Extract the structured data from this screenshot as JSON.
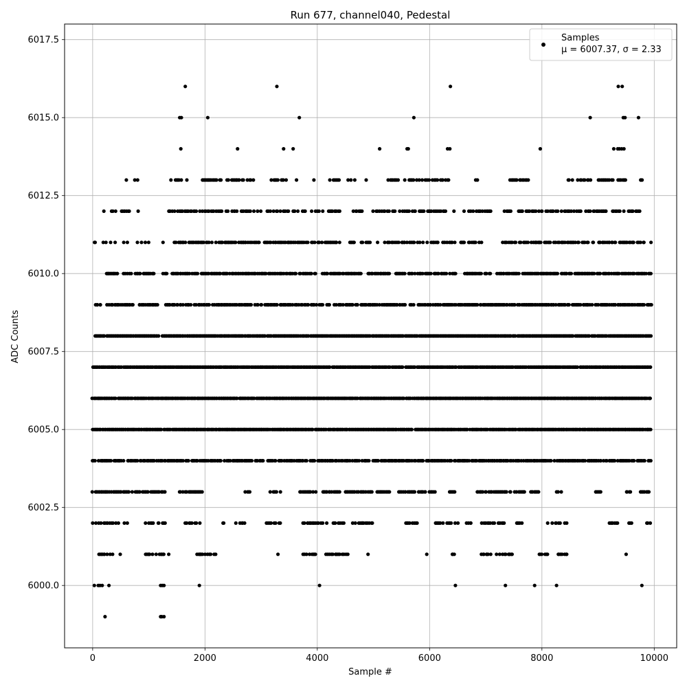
{
  "chart_data": {
    "type": "scatter",
    "title": "Run 677, channel040, Pedestal",
    "xlabel": "Sample #",
    "ylabel": "ADC Counts",
    "xlim": [
      -500,
      10400
    ],
    "ylim": [
      5998.0,
      6018.0
    ],
    "x_ticks": [
      0,
      2000,
      4000,
      6000,
      8000,
      10000
    ],
    "y_ticks": [
      6000.0,
      6002.5,
      6005.0,
      6007.5,
      6010.0,
      6012.5,
      6015.0,
      6017.5
    ],
    "x_tick_labels": [
      "0",
      "2000",
      "4000",
      "6000",
      "8000",
      "10000"
    ],
    "y_tick_labels": [
      "6000.0",
      "6002.5",
      "6005.0",
      "6007.5",
      "6010.0",
      "6012.5",
      "6015.0",
      "6017.5"
    ],
    "grid": true,
    "legend_position": "top-right",
    "marker_color": "#000000",
    "n_samples": 10000,
    "series": [
      {
        "name": "Samples",
        "stats_label": "μ = 6007.37, σ = 2.33",
        "mean": 6007.37,
        "std": 2.33,
        "level_ranges": [
          {
            "y": 6016,
            "x": [
              1650,
              3280,
              6370,
              9360,
              9430
            ]
          },
          {
            "y": 6015,
            "x": [
              1550,
              1580,
              2050,
              3680,
              5720,
              8860,
              9450,
              9480,
              9720
            ]
          },
          {
            "y": 6014,
            "x": [
              1570,
              2580,
              3400,
              3570,
              5110,
              5600,
              5620,
              6320,
              6360,
              7970,
              9280,
              9350,
              9380,
              9420,
              9460
            ]
          },
          {
            "y": 6013,
            "x": [
              [
                1370,
                1700
              ],
              [
                1950,
                2300
              ],
              [
                2400,
                2900
              ],
              [
                3150,
                3450
              ],
              [
                3630,
                3640
              ],
              [
                3940,
                3950
              ],
              [
                4200,
                4400
              ],
              [
                4550,
                4700
              ],
              [
                4870,
                4880
              ],
              [
                5250,
                5450
              ],
              [
                5550,
                6000
              ],
              [
                6050,
                6150
              ],
              [
                6200,
                6350
              ],
              [
                6820,
                6860
              ],
              [
                7350,
                7800
              ],
              [
                8450,
                8900
              ],
              [
                9000,
                9300
              ],
              [
                9350,
                9500
              ],
              [
                9720,
                9800
              ]
            ],
            "sparse": [
              600,
              750,
              800
            ]
          },
          {
            "y": 6012,
            "x": [
              [
                320,
                420
              ],
              [
                500,
                650
              ],
              [
                800,
                850
              ],
              [
                1350,
                2500
              ],
              [
                2500,
                3500
              ],
              [
                3550,
                3900
              ],
              [
                3950,
                4100
              ],
              [
                4200,
                4400
              ],
              [
                4600,
                4800
              ],
              [
                5000,
                5300
              ],
              [
                5350,
                6450
              ],
              [
                6600,
                7100
              ],
              [
                7300,
                7500
              ],
              [
                7550,
                7900
              ],
              [
                7950,
                8300
              ],
              [
                8350,
                8700
              ],
              [
                8750,
                9500
              ],
              [
                9550,
                9800
              ]
            ],
            "sparse": [
              200
            ]
          },
          {
            "y": 6011,
            "x": [
              [
                30,
                60
              ],
              [
                180,
                250
              ],
              [
                320,
                400
              ],
              [
                550,
                700
              ],
              [
                800,
                1000
              ],
              [
                1250,
                1300
              ],
              [
                1450,
                4700
              ],
              [
                4750,
                4950
              ],
              [
                5050,
                5100
              ],
              [
                5200,
                6450
              ],
              [
                6550,
                6950
              ],
              [
                7300,
                9950
              ]
            ]
          },
          {
            "y": 6010,
            "x": [
              [
                230,
                450
              ],
              [
                550,
                700
              ],
              [
                750,
                850
              ],
              [
                900,
                1100
              ],
              [
                1250,
                4000
              ],
              [
                4100,
                4800
              ],
              [
                4900,
                5300
              ],
              [
                5400,
                6500
              ],
              [
                6600,
                7100
              ],
              [
                7200,
                9950
              ]
            ]
          },
          {
            "y": 6009,
            "x": [
              [
                20,
                150
              ],
              [
                250,
                1150
              ],
              [
                1250,
                9950
              ]
            ]
          },
          {
            "y": 6008,
            "x": [
              [
                50,
                1200
              ],
              [
                1250,
                9950
              ]
            ]
          },
          {
            "y": 6007,
            "x": [
              [
                0,
                9950
              ]
            ]
          },
          {
            "y": 6006,
            "x": [
              [
                0,
                9950
              ]
            ]
          },
          {
            "y": 6005,
            "x": [
              [
                0,
                9950
              ]
            ]
          },
          {
            "y": 6004,
            "x": [
              [
                0,
                1100
              ],
              [
                1150,
                9950
              ]
            ]
          },
          {
            "y": 6003,
            "x": [
              [
                0,
                650
              ],
              [
                700,
                1300
              ],
              [
                1550,
                1950
              ],
              [
                2700,
                2800
              ],
              [
                3150,
                3350
              ],
              [
                3700,
                4000
              ],
              [
                4100,
                4400
              ],
              [
                4500,
                5000
              ],
              [
                5050,
                5300
              ],
              [
                5450,
                5750
              ],
              [
                5800,
                6100
              ],
              [
                6350,
                6450
              ],
              [
                6850,
                7700
              ],
              [
                7800,
                8000
              ],
              [
                8250,
                8350
              ],
              [
                8950,
                9050
              ],
              [
                9500,
                9600
              ],
              [
                9750,
                9950
              ]
            ]
          },
          {
            "y": 6002,
            "x": [
              [
                0,
                450
              ],
              [
                550,
                650
              ],
              [
                950,
                1300
              ],
              [
                1650,
                1950
              ],
              [
                2300,
                2350
              ],
              [
                2550,
                2800
              ],
              [
                3100,
                3350
              ],
              [
                3750,
                4200
              ],
              [
                4250,
                4500
              ],
              [
                4600,
                5000
              ],
              [
                5550,
                5800
              ],
              [
                6100,
                6550
              ],
              [
                6650,
                6800
              ],
              [
                6850,
                7000
              ],
              [
                7000,
                7350
              ],
              [
                7550,
                7650
              ],
              [
                8100,
                8500
              ],
              [
                9150,
                9350
              ],
              [
                9550,
                9650
              ],
              [
                9850,
                9950
              ]
            ]
          },
          {
            "y": 6001,
            "x": [
              [
                50,
                500
              ],
              [
                950,
                1350
              ],
              [
                1850,
                2200
              ],
              [
                3300,
                3310
              ],
              [
                3750,
                4000
              ],
              [
                4050,
                4550
              ],
              [
                4900,
                4950
              ],
              [
                5950,
                5960
              ],
              [
                6400,
                6450
              ],
              [
                6900,
                7100
              ],
              [
                7200,
                7500
              ],
              [
                7950,
                8100
              ],
              [
                8250,
                8450
              ],
              [
                9500,
                9510
              ]
            ]
          },
          {
            "y": 6000,
            "x": [
              30,
              100,
              130,
              170,
              290,
              1210,
              1240,
              1270,
              1900,
              4040,
              6460,
              7350,
              7870,
              8260,
              9780
            ]
          },
          {
            "y": 5999,
            "x": [
              220,
              1210,
              1230,
              1270
            ]
          }
        ]
      }
    ]
  }
}
